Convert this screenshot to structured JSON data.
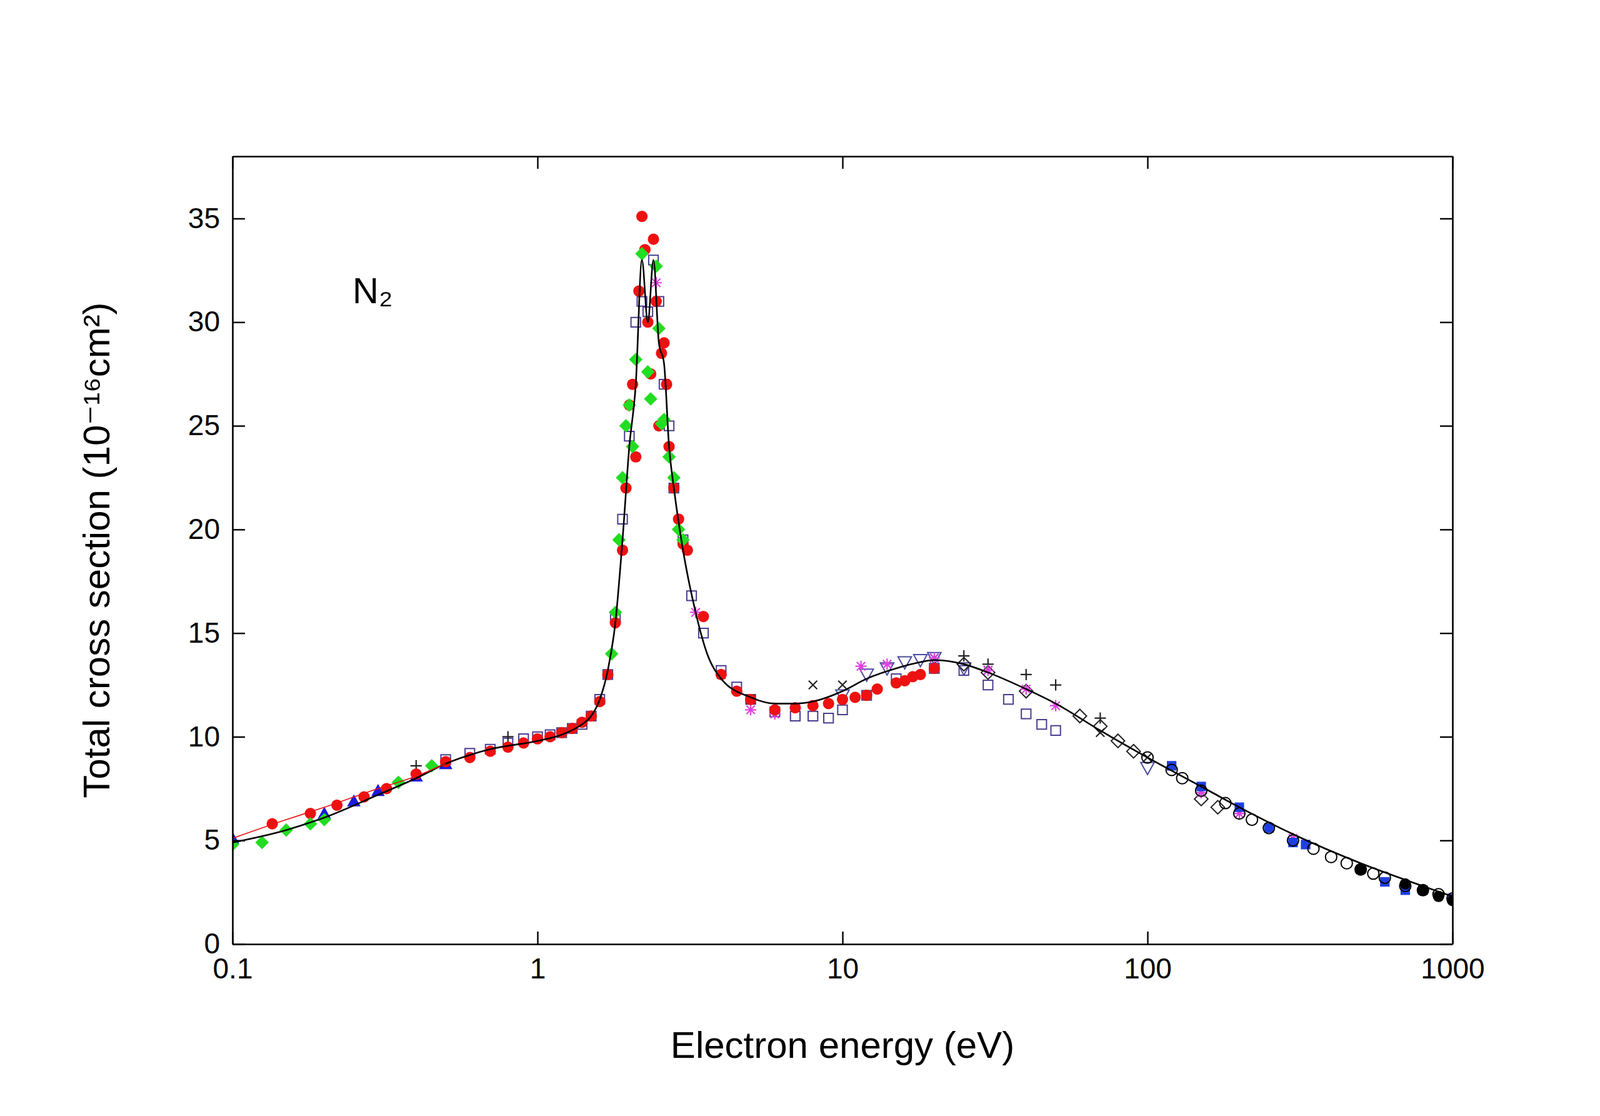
{
  "chart_data": {
    "type": "scatter",
    "title": "N₂",
    "x_label": "Electron energy (eV)",
    "y_label": "Total cross section (10⁻¹⁶cm²)",
    "log": "x",
    "xlim": [
      0.1,
      1000
    ],
    "xticks": [
      0.1,
      1,
      10,
      100,
      1000
    ],
    "ylim": [
      0,
      38
    ],
    "yticks": [
      0,
      5,
      10,
      15,
      20,
      25,
      30,
      35
    ],
    "grid": false,
    "series": [
      {
        "color": "#4a3d8f",
        "marker": "square-open",
        "x": [
          0.5,
          0.6,
          0.7,
          0.8,
          0.9,
          1,
          1.1,
          1.2,
          1.3,
          1.4,
          1.5,
          1.6,
          1.7,
          1.8,
          1.9,
          2.0,
          2.1,
          2.2,
          2.3,
          2.4,
          2.5,
          2.6,
          2.7,
          2.8,
          3.0,
          3.2,
          3.5,
          4,
          4.5,
          5,
          6,
          7,
          8,
          9,
          10,
          12,
          15,
          20,
          25,
          30,
          35,
          40,
          45,
          50
        ],
        "values": [
          8.9,
          9.2,
          9.4,
          9.7,
          9.9,
          10.0,
          10.1,
          10.2,
          10.4,
          10.6,
          11.0,
          11.8,
          13.0,
          15.8,
          20.5,
          24.5,
          30.0,
          31.0,
          30.5,
          33.0,
          31.0,
          27.0,
          25.0,
          22.0,
          19.5,
          16.8,
          15.0,
          13.2,
          12.4,
          11.8,
          11.2,
          11.0,
          11.0,
          10.9,
          11.3,
          12.0,
          12.8,
          13.3,
          13.2,
          12.5,
          11.8,
          11.1,
          10.6,
          10.3
        ]
      },
      {
        "color": "#4a4aa0",
        "marker": "triangle-down-open",
        "x": [
          10,
          12,
          14,
          16,
          18,
          20,
          25,
          100
        ],
        "values": [
          12.0,
          13.0,
          13.3,
          13.6,
          13.7,
          13.8,
          13.3,
          8.5
        ]
      },
      {
        "color": "#222222",
        "marker": "x",
        "x": [
          4,
          5,
          8,
          10,
          20,
          30,
          70,
          100
        ],
        "values": [
          13.0,
          11.8,
          12.5,
          12.5,
          13.8,
          13.2,
          10.2,
          9.0
        ]
      },
      {
        "color": "#222222",
        "marker": "plus",
        "x": [
          0.4,
          0.8,
          25,
          30,
          40,
          50,
          70
        ],
        "values": [
          8.6,
          10.0,
          13.9,
          13.5,
          13.0,
          12.5,
          10.9
        ]
      },
      {
        "color": "#222222",
        "marker": "diamond-open",
        "x": [
          25,
          30,
          40,
          60,
          70,
          80,
          90,
          150,
          170
        ],
        "values": [
          13.5,
          13.1,
          12.2,
          11.0,
          10.5,
          9.8,
          9.3,
          7.0,
          6.6
        ]
      },
      {
        "color": "#e040e0",
        "marker": "asterisk",
        "x": [
          2.45,
          3.3,
          5,
          6,
          11.5,
          14,
          20,
          30,
          40,
          50,
          150,
          200,
          300
        ],
        "values": [
          31.9,
          16.0,
          11.3,
          11.1,
          13.4,
          13.5,
          13.8,
          13.2,
          12.3,
          11.5,
          7.3,
          6.3,
          5.1
        ]
      },
      {
        "color": "#1a1adc",
        "marker": "triangle",
        "x": [
          0.1,
          0.2,
          0.25,
          0.3,
          0.4,
          0.5
        ],
        "values": [
          5.1,
          6.3,
          6.9,
          7.4,
          8.1,
          8.7
        ]
      },
      {
        "color": "#ee1111",
        "marker": "circle",
        "x": [
          0.135,
          0.18,
          0.22,
          0.27,
          0.32,
          0.4,
          0.5,
          0.6,
          0.7,
          0.8,
          0.9,
          1.0,
          1.1,
          1.2,
          1.3,
          1.4,
          1.5,
          1.6,
          1.7,
          1.8,
          1.9,
          1.95,
          2.0,
          2.05,
          2.1,
          2.15,
          2.2,
          2.25,
          2.3,
          2.35,
          2.4,
          2.45,
          2.5,
          2.55,
          2.6,
          2.65,
          2.7,
          2.8,
          2.9,
          3.0,
          3.1,
          3.5,
          4,
          4.5,
          5,
          6,
          7,
          8,
          9,
          10,
          11,
          12,
          13,
          15,
          16,
          17,
          18,
          20
        ],
        "values": [
          5.8,
          6.3,
          6.7,
          7.1,
          7.5,
          8.2,
          8.8,
          9.0,
          9.3,
          9.5,
          9.7,
          9.9,
          10.0,
          10.2,
          10.4,
          10.7,
          11.0,
          11.7,
          13.0,
          15.5,
          19.0,
          22.0,
          26.0,
          27.0,
          23.5,
          31.5,
          35.1,
          33.5,
          30.0,
          27.5,
          34.0,
          31.0,
          25.0,
          28.5,
          29.0,
          27.0,
          24.0,
          22.0,
          20.5,
          19.3,
          19.0,
          15.8,
          13.0,
          12.2,
          11.8,
          11.3,
          11.4,
          11.5,
          11.6,
          11.8,
          11.9,
          12.0,
          12.3,
          12.6,
          12.7,
          12.9,
          13.0,
          13.3
        ]
      },
      {
        "color": "#22dd22",
        "marker": "diamond",
        "x": [
          0.1,
          0.125,
          0.15,
          0.18,
          0.2,
          0.35,
          0.45,
          1.75,
          1.8,
          1.85,
          1.9,
          1.95,
          2.0,
          2.05,
          2.1,
          2.2,
          2.3,
          2.35,
          2.45,
          2.5,
          2.55,
          2.6,
          2.7,
          2.8,
          2.9,
          3.0
        ],
        "values": [
          4.8,
          4.9,
          5.5,
          5.8,
          6.0,
          7.8,
          8.6,
          14.0,
          16.0,
          19.5,
          22.5,
          25.0,
          26.0,
          24.0,
          28.2,
          33.3,
          27.6,
          26.3,
          32.7,
          29.7,
          25.1,
          25.3,
          23.5,
          22.5,
          20.0,
          19.5
        ]
      },
      {
        "color": "#1f3fe0",
        "marker": "square",
        "x": [
          120,
          150,
          200,
          250,
          300,
          330,
          500,
          600,
          700,
          800,
          1000
        ],
        "values": [
          8.6,
          7.6,
          6.6,
          5.6,
          4.9,
          4.8,
          3.6,
          3.0,
          2.6,
          2.6,
          2.2
        ]
      },
      {
        "color": "#000000",
        "marker": "circle-open",
        "x": [
          100,
          120,
          130,
          150,
          180,
          200,
          220,
          250,
          300,
          350,
          400,
          450,
          500,
          550,
          600,
          700,
          800,
          900,
          1000
        ],
        "values": [
          9.0,
          8.4,
          8.0,
          7.4,
          6.8,
          6.3,
          6.0,
          5.6,
          5.0,
          4.6,
          4.2,
          3.9,
          3.6,
          3.4,
          3.2,
          2.8,
          2.6,
          2.4,
          2.2
        ]
      },
      {
        "color": "#000000",
        "marker": "circle",
        "x": [
          500,
          700,
          800,
          900,
          1000
        ],
        "values": [
          3.6,
          2.9,
          2.6,
          2.3,
          2.1
        ]
      },
      {
        "type": "line",
        "color": "#000000",
        "line_style": "solid",
        "x": [
          0.1,
          0.15,
          0.2,
          0.3,
          0.4,
          0.5,
          0.7,
          1.0,
          1.2,
          1.4,
          1.5,
          1.6,
          1.7,
          1.8,
          1.9,
          2.0,
          2.1,
          2.2,
          2.3,
          2.4,
          2.5,
          2.6,
          2.7,
          2.8,
          3.0,
          3.3,
          3.6,
          4.0,
          5,
          6,
          7,
          8,
          10,
          12,
          15,
          18,
          20,
          25,
          30,
          40,
          50,
          70,
          100,
          150,
          200,
          300,
          500,
          700,
          1000
        ],
        "values": [
          4.9,
          5.5,
          6.1,
          7.2,
          8.0,
          8.7,
          9.4,
          9.8,
          10.1,
          10.6,
          11.0,
          11.8,
          13.2,
          15.5,
          19.5,
          24.0,
          27.0,
          33.0,
          30.0,
          33.0,
          29.0,
          28.0,
          24.0,
          22.0,
          19.0,
          16.0,
          14.0,
          12.8,
          11.9,
          11.6,
          11.6,
          11.7,
          12.2,
          12.8,
          13.3,
          13.6,
          13.7,
          13.5,
          13.1,
          12.3,
          11.6,
          10.3,
          9.0,
          7.6,
          6.6,
          5.3,
          3.9,
          3.1,
          2.3
        ]
      },
      {
        "type": "line",
        "color": "#ee1111",
        "line_style": "solid",
        "x": [
          0.1,
          0.15,
          0.2,
          0.3,
          0.4,
          0.5
        ],
        "values": [
          5.1,
          6.0,
          6.6,
          7.5,
          8.1,
          8.7
        ]
      }
    ]
  }
}
